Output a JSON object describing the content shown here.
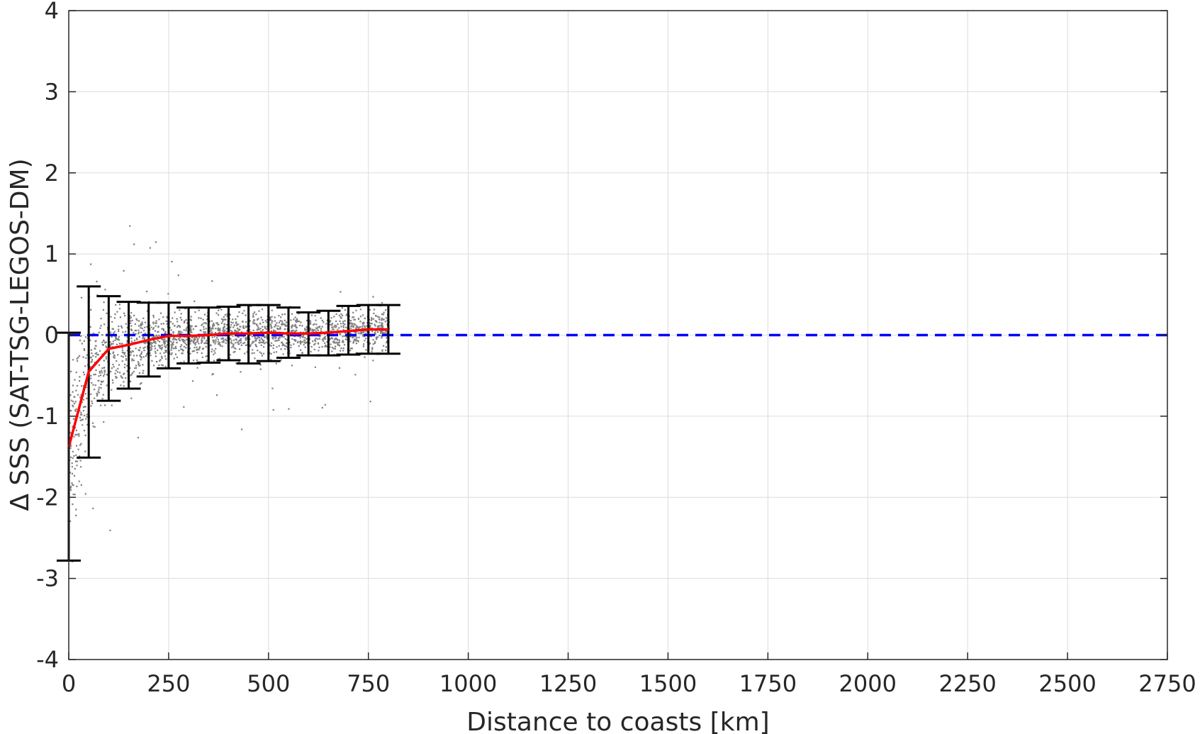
{
  "chart_data": {
    "type": "scatter",
    "title": "",
    "xlabel": "Distance to coasts [km]",
    "ylabel": "Δ SSS (SAT-TSG-LEGOS-DM)",
    "xlim": [
      0,
      2750
    ],
    "ylim": [
      -4,
      4
    ],
    "xticks": [
      "0",
      "250",
      "500",
      "750",
      "1000",
      "1250",
      "1500",
      "1750",
      "2000",
      "2250",
      "2500",
      "2750"
    ],
    "yticks": [
      "-4",
      "-3",
      "-2",
      "-1",
      "0",
      "1",
      "2",
      "3",
      "4"
    ],
    "grid": true,
    "legend": "none",
    "colors": {
      "scatter": "#808080",
      "mean_line": "#ff0000",
      "zero_line": "#0000ff",
      "error_bars": "#000000",
      "grid": "#dcdcdc",
      "axes": "#262626"
    },
    "scatter_description": "dense cloud of points for distances 0–800 km",
    "mean_curve": {
      "x": [
        0,
        50,
        100,
        150,
        200,
        250,
        300,
        350,
        400,
        450,
        500,
        550,
        600,
        650,
        700,
        750,
        800
      ],
      "y": [
        -1.38,
        -0.45,
        -0.17,
        -0.12,
        -0.06,
        -0.01,
        -0.01,
        0.0,
        0.02,
        0.02,
        0.03,
        0.02,
        0.02,
        0.03,
        0.05,
        0.07,
        0.07
      ]
    },
    "error_bars": {
      "x": [
        0,
        50,
        100,
        150,
        200,
        250,
        300,
        350,
        400,
        450,
        500,
        550,
        600,
        650,
        700,
        750,
        800
      ],
      "lower": [
        -2.78,
        -1.51,
        -0.81,
        -0.66,
        -0.51,
        -0.41,
        -0.35,
        -0.34,
        -0.31,
        -0.35,
        -0.32,
        -0.28,
        -0.25,
        -0.25,
        -0.24,
        -0.23,
        -0.23
      ],
      "upper": [
        0.03,
        0.6,
        0.48,
        0.41,
        0.4,
        0.4,
        0.34,
        0.34,
        0.35,
        0.37,
        0.37,
        0.34,
        0.28,
        0.3,
        0.36,
        0.37,
        0.37
      ]
    },
    "reference_line": {
      "y": 0,
      "style": "dashed"
    }
  }
}
